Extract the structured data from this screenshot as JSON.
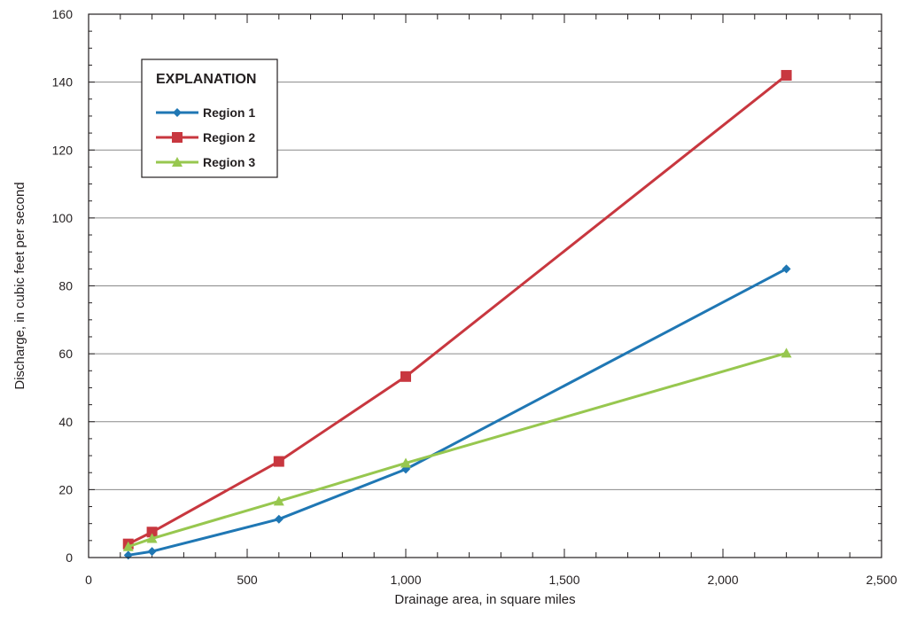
{
  "chart_data": {
    "type": "line",
    "title": "",
    "xlabel": "Drainage area, in square miles",
    "ylabel": "Discharge, in cubic feet per second",
    "xlim": [
      0,
      2500
    ],
    "ylim": [
      0,
      160
    ],
    "x_ticks": [
      0,
      500,
      1000,
      1500,
      2000,
      2500
    ],
    "x_tick_labels": [
      "0",
      "500",
      "1,000",
      "1,500",
      "2,000",
      "2,500"
    ],
    "y_ticks": [
      0,
      20,
      40,
      60,
      80,
      100,
      120,
      140,
      160
    ],
    "y_tick_labels": [
      "0",
      "20",
      "40",
      "60",
      "80",
      "100",
      "120",
      "140",
      "160"
    ],
    "grid": "horizontal",
    "legend_title": "EXPLANATION",
    "legend_position": "top-left",
    "series": [
      {
        "name": "Region 1",
        "color": "#1f77b4",
        "marker": "diamond",
        "x": [
          125,
          200,
          600,
          1000,
          2200
        ],
        "y": [
          0.7,
          1.8,
          11.3,
          26,
          85
        ]
      },
      {
        "name": "Region 2",
        "color": "#c8373f",
        "marker": "square",
        "x": [
          125,
          200,
          600,
          1000,
          2200
        ],
        "y": [
          4,
          7.5,
          28.3,
          53.3,
          142
        ]
      },
      {
        "name": "Region 3",
        "color": "#97c74f",
        "marker": "triangle",
        "x": [
          125,
          200,
          600,
          1000,
          2200
        ],
        "y": [
          3.2,
          5.6,
          16.6,
          27.8,
          60.2
        ]
      }
    ]
  }
}
